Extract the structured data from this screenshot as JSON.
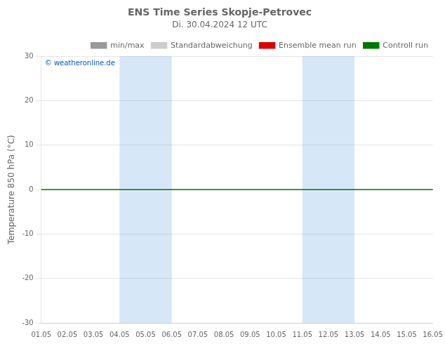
{
  "chart_data": {
    "type": "line",
    "title": "ENS Time Series Skopje-Petrovec",
    "subtitle": "Di. 30.04.2024 12 UTC",
    "ylabel": "Temperature 850 hPa (°C)",
    "categories": [
      "01.05",
      "02.05",
      "03.05",
      "04.05",
      "05.05",
      "06.05",
      "07.05",
      "08.05",
      "09.05",
      "10.05",
      "11.05",
      "12.05",
      "13.05",
      "14.05",
      "15.05",
      "16.05"
    ],
    "series": [
      {
        "name": "min/max",
        "color": "#999999",
        "values": [
          null,
          null,
          null,
          null,
          null,
          null,
          null,
          null,
          null,
          null,
          null,
          null,
          null,
          null,
          null,
          null
        ]
      },
      {
        "name": "Standardabweichung",
        "color": "#cccccc",
        "values": [
          null,
          null,
          null,
          null,
          null,
          null,
          null,
          null,
          null,
          null,
          null,
          null,
          null,
          null,
          null,
          null
        ]
      },
      {
        "name": "Ensemble mean run",
        "color": "#dd0000",
        "values": [
          null,
          null,
          null,
          null,
          null,
          null,
          null,
          null,
          null,
          null,
          null,
          null,
          null,
          null,
          null,
          null
        ]
      },
      {
        "name": "Controll run",
        "color": "#007700",
        "values": [
          0,
          0,
          0,
          0,
          0,
          0,
          0,
          0,
          0,
          0,
          0,
          0,
          0,
          0,
          0,
          0
        ]
      }
    ],
    "ylim": [
      -30,
      30
    ],
    "yticks": [
      -30,
      -20,
      -10,
      0,
      10,
      20,
      30
    ],
    "grid": "y",
    "legend": "upper right",
    "bands": [
      {
        "from": "04.05",
        "to": "06.05",
        "color": "#d6e8f7"
      },
      {
        "from": "11.05",
        "to": "13.05",
        "color": "#d6e8f7"
      }
    ],
    "annotations": [
      {
        "text": "© weatheronline.de",
        "color": "#0055cc"
      }
    ]
  }
}
